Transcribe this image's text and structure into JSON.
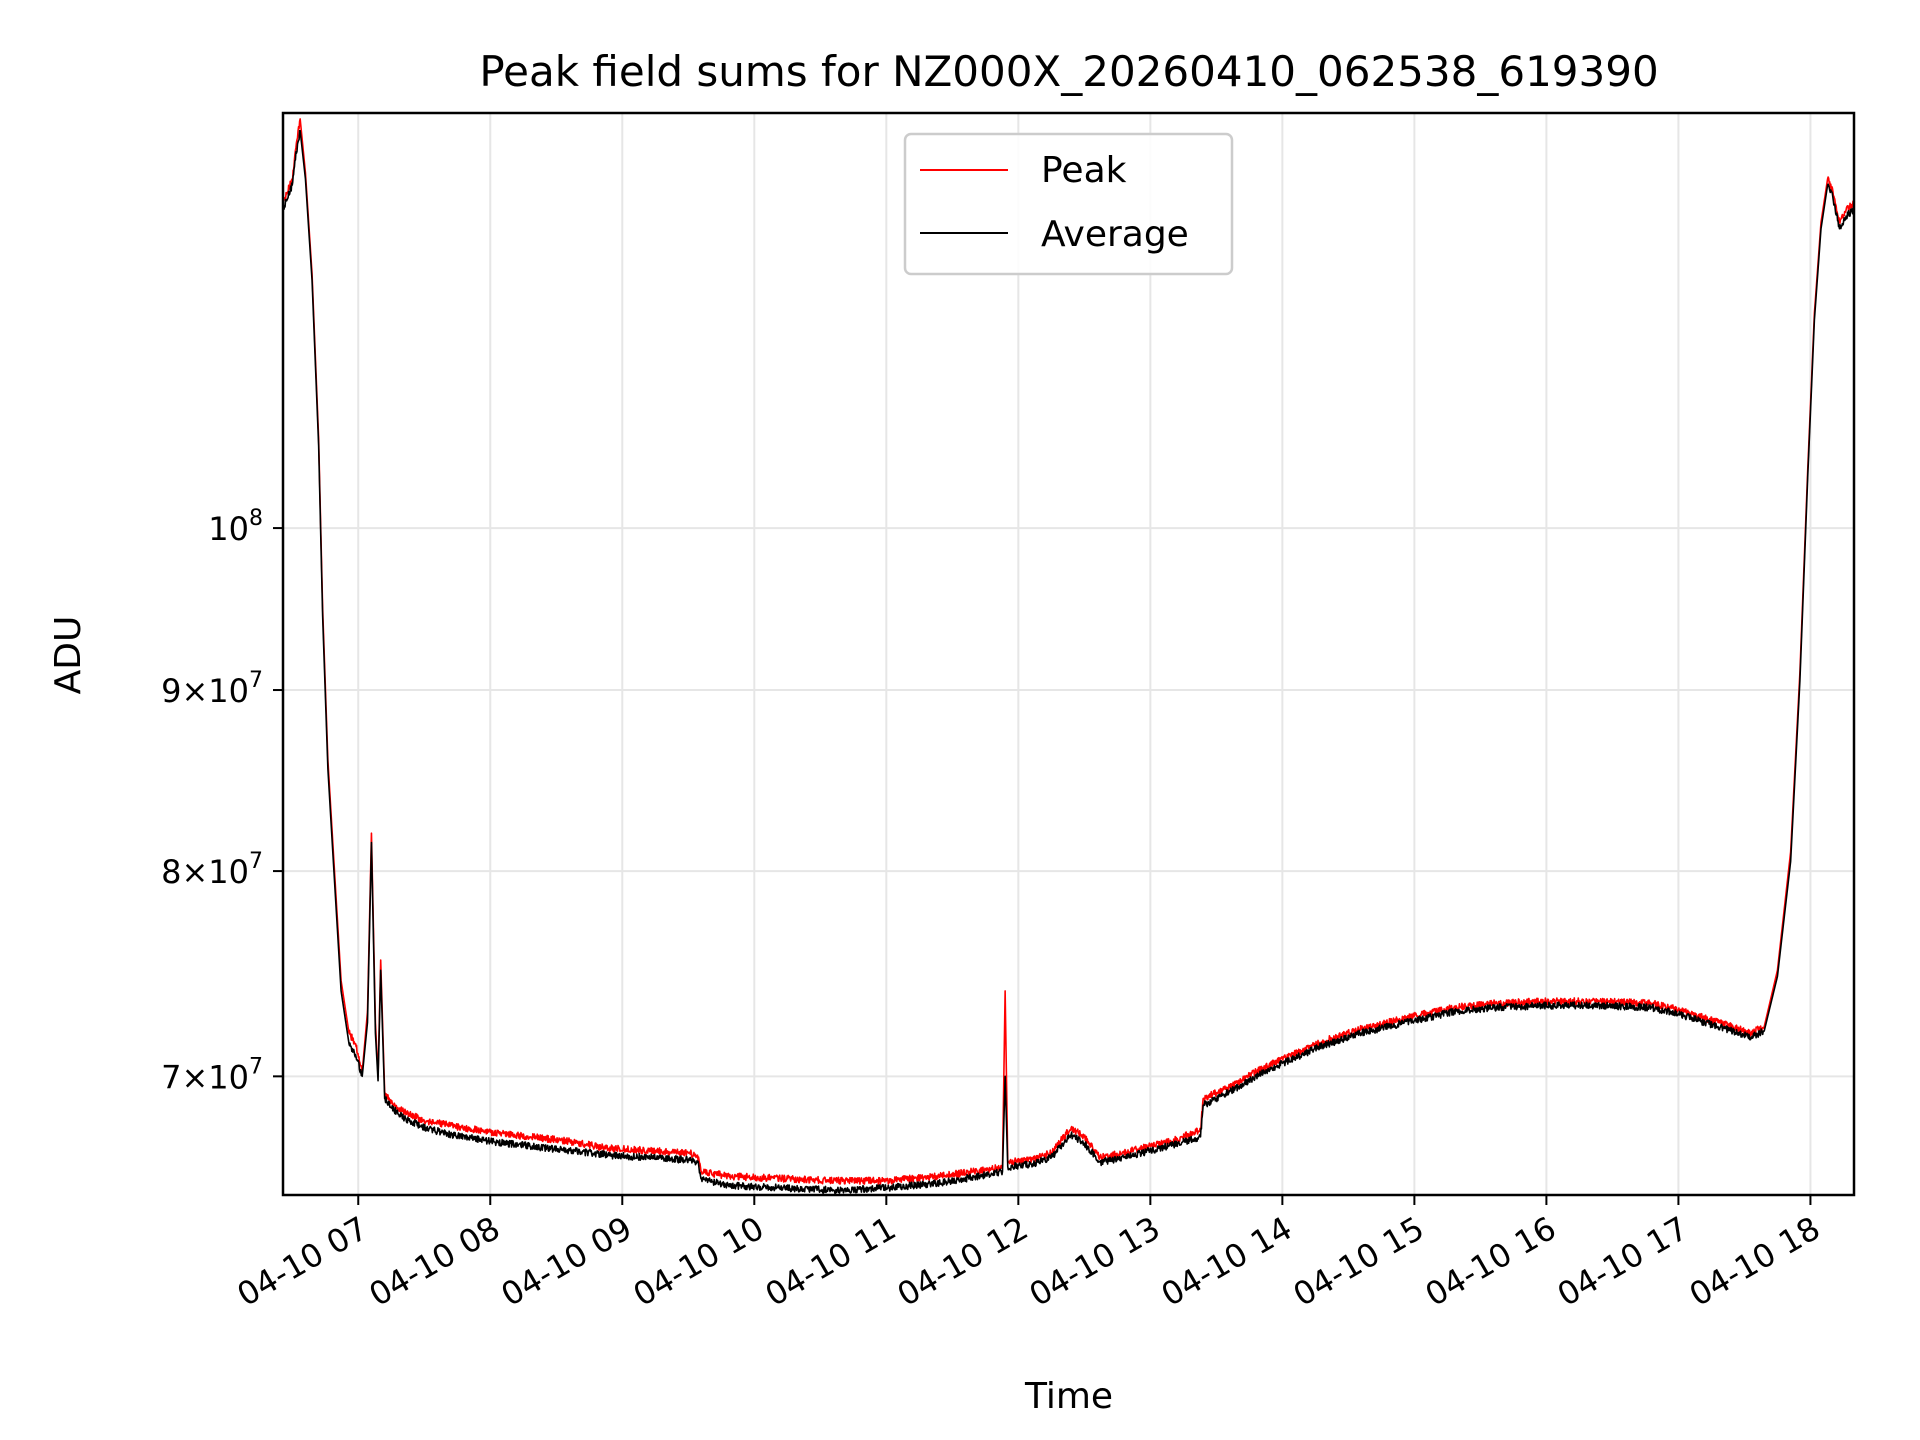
{
  "chart_data": {
    "type": "line",
    "title": "Peak field sums for NZ000X_20260410_062538_619390",
    "xlabel": "Time",
    "ylabel": "ADU",
    "yscale": "log",
    "grid": true,
    "legend_position": "upper-center",
    "x_unit": "hour of day (2026-04-10)",
    "xlim": [
      6.43,
      18.33
    ],
    "ylim": [
      64800000,
      131000000
    ],
    "x_ticks": [
      {
        "value": 7,
        "label": "04-10 07"
      },
      {
        "value": 8,
        "label": "04-10 08"
      },
      {
        "value": 9,
        "label": "04-10 09"
      },
      {
        "value": 10,
        "label": "04-10 10"
      },
      {
        "value": 11,
        "label": "04-10 11"
      },
      {
        "value": 12,
        "label": "04-10 12"
      },
      {
        "value": 13,
        "label": "04-10 13"
      },
      {
        "value": 14,
        "label": "04-10 14"
      },
      {
        "value": 15,
        "label": "04-10 15"
      },
      {
        "value": 16,
        "label": "04-10 16"
      },
      {
        "value": 17,
        "label": "04-10 17"
      },
      {
        "value": 18,
        "label": "04-10 18"
      }
    ],
    "y_ticks": [
      {
        "value": 70000000,
        "mantissa": "7",
        "base": "10",
        "exp": "7"
      },
      {
        "value": 80000000,
        "mantissa": "8",
        "base": "10",
        "exp": "7"
      },
      {
        "value": 90000000,
        "mantissa": "9",
        "base": "10",
        "exp": "7"
      },
      {
        "value": 100000000,
        "mantissa": "",
        "base": "10",
        "exp": "8"
      }
    ],
    "series": [
      {
        "name": "Peak",
        "color": "#ff0000",
        "points": [
          [
            6.43,
            123500000
          ],
          [
            6.5,
            125500000
          ],
          [
            6.52,
            127500000
          ],
          [
            6.56,
            130500000
          ],
          [
            6.6,
            126000000
          ],
          [
            6.65,
            118000000
          ],
          [
            6.7,
            106000000
          ],
          [
            6.73,
            95000000
          ],
          [
            6.77,
            86000000
          ],
          [
            6.82,
            80000000
          ],
          [
            6.87,
            74500000
          ],
          [
            6.93,
            72000000
          ],
          [
            6.98,
            71500000
          ],
          [
            7.03,
            70200000
          ],
          [
            7.07,
            73000000
          ],
          [
            7.1,
            82000000
          ],
          [
            7.13,
            72500000
          ],
          [
            7.15,
            70000000
          ],
          [
            7.17,
            75500000
          ],
          [
            7.2,
            69300000
          ],
          [
            7.25,
            68800000
          ],
          [
            7.35,
            68400000
          ],
          [
            7.5,
            68000000
          ],
          [
            7.7,
            67800000
          ],
          [
            8.0,
            67500000
          ],
          [
            8.3,
            67300000
          ],
          [
            8.6,
            67100000
          ],
          [
            8.9,
            66800000
          ],
          [
            9.2,
            66700000
          ],
          [
            9.5,
            66600000
          ],
          [
            9.57,
            66500000
          ],
          [
            9.6,
            65800000
          ],
          [
            9.8,
            65600000
          ],
          [
            10.2,
            65500000
          ],
          [
            10.6,
            65400000
          ],
          [
            11.0,
            65400000
          ],
          [
            11.4,
            65600000
          ],
          [
            11.8,
            65900000
          ],
          [
            11.88,
            66000000
          ],
          [
            11.9,
            74000000
          ],
          [
            11.92,
            66200000
          ],
          [
            12.1,
            66300000
          ],
          [
            12.25,
            66600000
          ],
          [
            12.4,
            67700000
          ],
          [
            12.5,
            67300000
          ],
          [
            12.62,
            66400000
          ],
          [
            12.8,
            66600000
          ],
          [
            13.0,
            66900000
          ],
          [
            13.2,
            67200000
          ],
          [
            13.38,
            67600000
          ],
          [
            13.4,
            69000000
          ],
          [
            13.6,
            69500000
          ],
          [
            13.8,
            70200000
          ],
          [
            14.0,
            70800000
          ],
          [
            14.3,
            71600000
          ],
          [
            14.6,
            72200000
          ],
          [
            15.0,
            72800000
          ],
          [
            15.3,
            73200000
          ],
          [
            15.6,
            73400000
          ],
          [
            16.0,
            73500000
          ],
          [
            16.4,
            73500000
          ],
          [
            16.8,
            73400000
          ],
          [
            17.0,
            73100000
          ],
          [
            17.3,
            72500000
          ],
          [
            17.55,
            72000000
          ],
          [
            17.65,
            72300000
          ],
          [
            17.75,
            75000000
          ],
          [
            17.85,
            81000000
          ],
          [
            17.92,
            91000000
          ],
          [
            17.98,
            104000000
          ],
          [
            18.03,
            115000000
          ],
          [
            18.08,
            122000000
          ],
          [
            18.13,
            125500000
          ],
          [
            18.17,
            124500000
          ],
          [
            18.22,
            122000000
          ],
          [
            18.27,
            123000000
          ],
          [
            18.33,
            123500000
          ]
        ]
      },
      {
        "name": "Average",
        "color": "#000000",
        "points": [
          [
            6.43,
            123000000
          ],
          [
            6.5,
            125000000
          ],
          [
            6.52,
            127000000
          ],
          [
            6.56,
            129500000
          ],
          [
            6.6,
            125500000
          ],
          [
            6.65,
            117500000
          ],
          [
            6.7,
            105500000
          ],
          [
            6.73,
            94500000
          ],
          [
            6.77,
            85500000
          ],
          [
            6.82,
            79500000
          ],
          [
            6.87,
            74000000
          ],
          [
            6.93,
            71500000
          ],
          [
            6.98,
            71000000
          ],
          [
            7.03,
            70000000
          ],
          [
            7.07,
            72500000
          ],
          [
            7.1,
            81500000
          ],
          [
            7.13,
            72000000
          ],
          [
            7.15,
            69800000
          ],
          [
            7.17,
            75000000
          ],
          [
            7.2,
            69000000
          ],
          [
            7.25,
            68600000
          ],
          [
            7.35,
            68100000
          ],
          [
            7.5,
            67700000
          ],
          [
            7.7,
            67400000
          ],
          [
            8.0,
            67100000
          ],
          [
            8.3,
            66900000
          ],
          [
            8.6,
            66700000
          ],
          [
            8.9,
            66500000
          ],
          [
            9.2,
            66400000
          ],
          [
            9.5,
            66300000
          ],
          [
            9.57,
            66200000
          ],
          [
            9.6,
            65500000
          ],
          [
            9.8,
            65200000
          ],
          [
            10.2,
            65100000
          ],
          [
            10.6,
            65000000
          ],
          [
            11.0,
            65100000
          ],
          [
            11.4,
            65300000
          ],
          [
            11.8,
            65700000
          ],
          [
            11.88,
            65800000
          ],
          [
            11.9,
            70000000
          ],
          [
            11.92,
            66000000
          ],
          [
            12.1,
            66100000
          ],
          [
            12.25,
            66400000
          ],
          [
            12.4,
            67400000
          ],
          [
            12.5,
            67000000
          ],
          [
            12.62,
            66200000
          ],
          [
            12.8,
            66400000
          ],
          [
            13.0,
            66700000
          ],
          [
            13.2,
            67000000
          ],
          [
            13.38,
            67300000
          ],
          [
            13.4,
            68700000
          ],
          [
            13.6,
            69300000
          ],
          [
            13.8,
            70000000
          ],
          [
            14.0,
            70600000
          ],
          [
            14.3,
            71400000
          ],
          [
            14.6,
            72000000
          ],
          [
            15.0,
            72600000
          ],
          [
            15.3,
            73000000
          ],
          [
            15.6,
            73200000
          ],
          [
            16.0,
            73300000
          ],
          [
            16.4,
            73300000
          ],
          [
            16.8,
            73200000
          ],
          [
            17.0,
            72900000
          ],
          [
            17.3,
            72300000
          ],
          [
            17.55,
            71800000
          ],
          [
            17.65,
            72100000
          ],
          [
            17.75,
            74700000
          ],
          [
            17.85,
            80500000
          ],
          [
            17.92,
            90500000
          ],
          [
            17.98,
            103500000
          ],
          [
            18.03,
            114500000
          ],
          [
            18.08,
            121500000
          ],
          [
            18.13,
            125000000
          ],
          [
            18.17,
            124000000
          ],
          [
            18.22,
            121500000
          ],
          [
            18.27,
            122500000
          ],
          [
            18.33,
            123000000
          ]
        ]
      }
    ]
  }
}
